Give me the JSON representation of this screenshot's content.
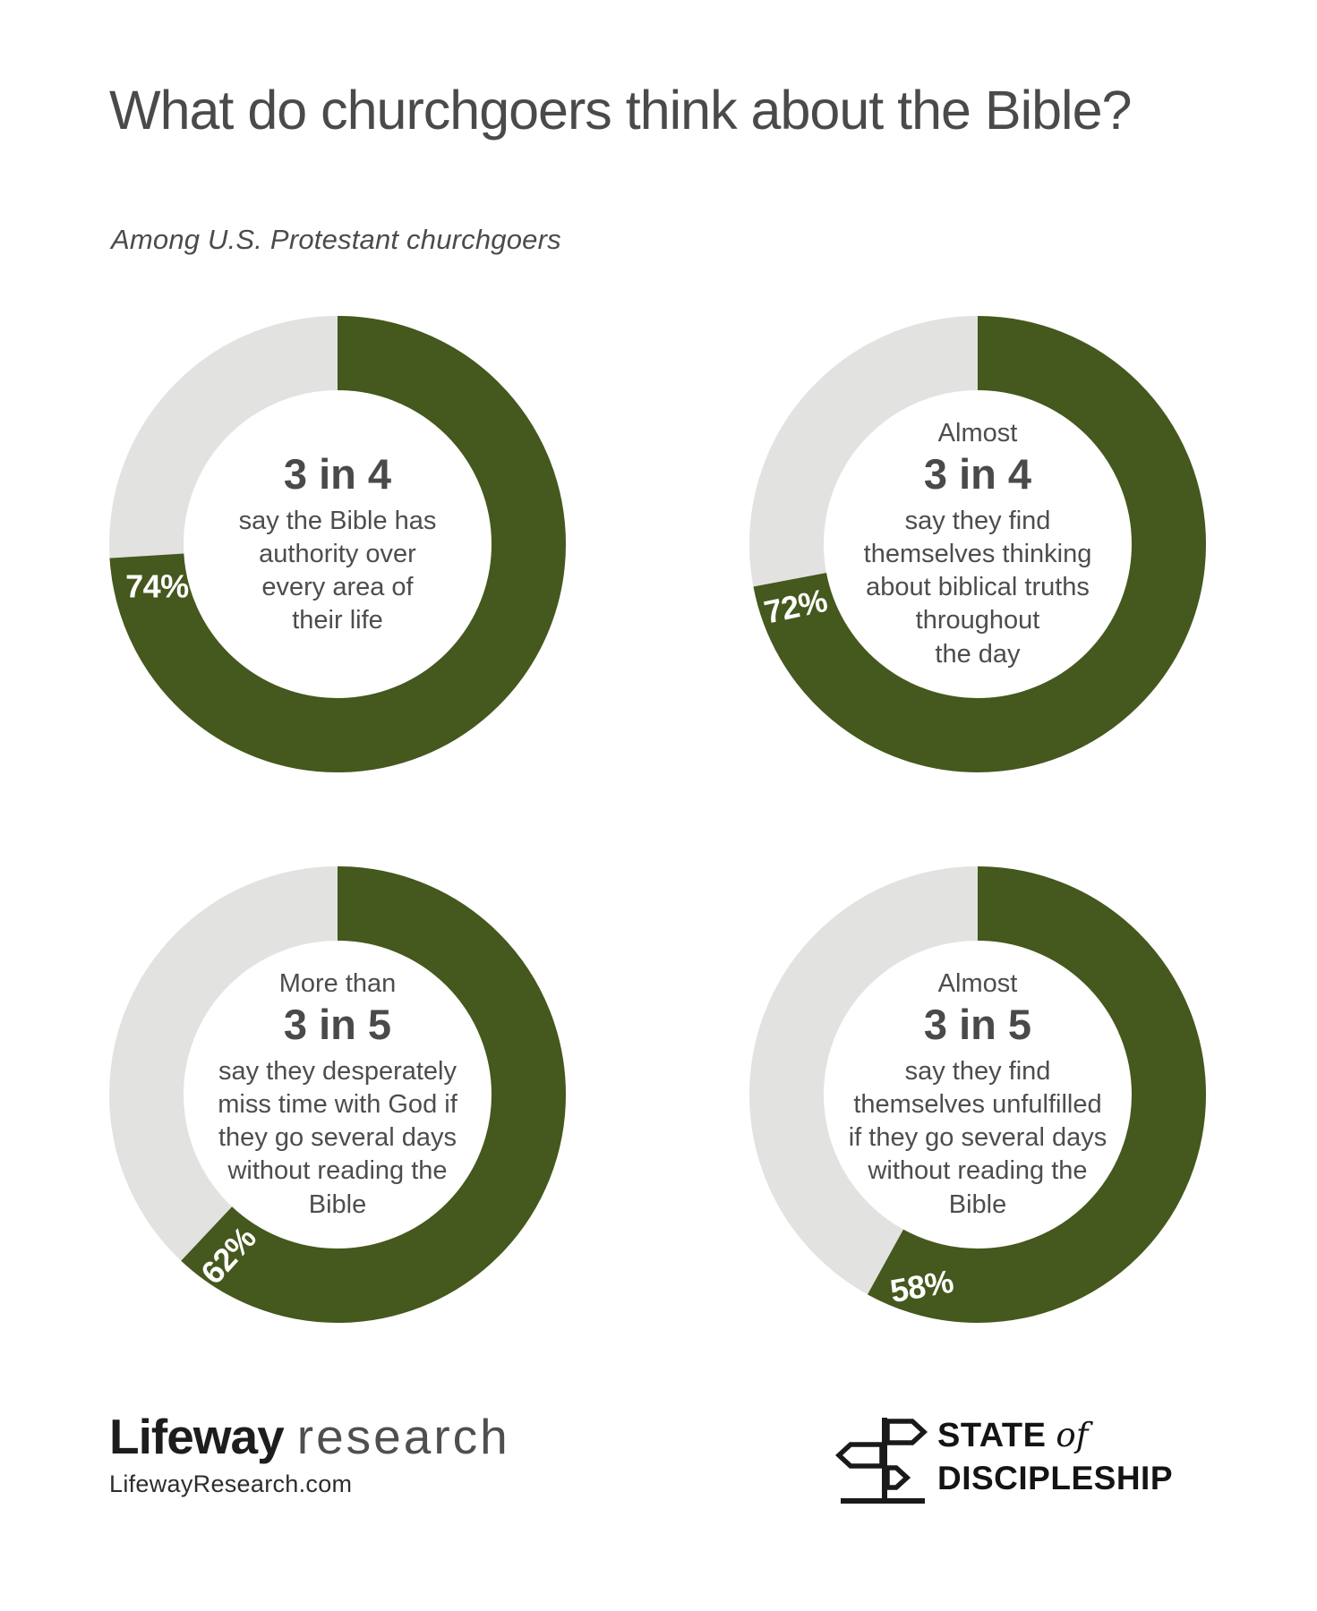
{
  "title": "What do churchgoers think about the Bible?",
  "subtitle": "Among U.S. Protestant churchgoers",
  "colors": {
    "green": "#45581D",
    "track": "#E2E2E1",
    "heading_text": "#4A4A4A",
    "body_text": "#4D4D4D",
    "percent_label": "#FFFFFF"
  },
  "chart_data": [
    {
      "type": "pie",
      "style": "donut",
      "value": 74,
      "remainder": 26,
      "pct_label": "74%",
      "prefix": "",
      "headline": "3 in 4",
      "description": [
        "say the Bible has",
        "authority over",
        "every area of",
        "their life"
      ],
      "arc_start": "12 o'clock",
      "direction": "clockwise"
    },
    {
      "type": "pie",
      "style": "donut",
      "value": 72,
      "remainder": 28,
      "pct_label": "72%",
      "prefix": "Almost",
      "headline": "3 in 4",
      "description": [
        "say they find",
        "themselves thinking",
        "about biblical truths",
        "throughout",
        "the day"
      ],
      "arc_start": "12 o'clock",
      "direction": "clockwise"
    },
    {
      "type": "pie",
      "style": "donut",
      "value": 62,
      "remainder": 38,
      "pct_label": "62%",
      "prefix": "More than",
      "headline": "3 in 5",
      "description": [
        "say they desperately",
        "miss time with God if",
        "they go several days",
        "without reading the",
        "Bible"
      ],
      "arc_start": "12 o'clock",
      "direction": "clockwise"
    },
    {
      "type": "pie",
      "style": "donut",
      "value": 58,
      "remainder": 42,
      "pct_label": "58%",
      "prefix": "Almost",
      "headline": "3 in 5",
      "description": [
        "say they find",
        "themselves unfulfilled",
        "if they go several days",
        "without reading the",
        "Bible"
      ],
      "arc_start": "12 o'clock",
      "direction": "clockwise"
    }
  ],
  "footer": {
    "lifeway": {
      "brand": "Lifeway",
      "brand_suffix": "research",
      "url": "LifewayResearch.com"
    },
    "state_of_discipleship": {
      "line1_main": "STATE",
      "line1_italic": "of",
      "line2": "DISCIPLESHIP",
      "icon": "signpost-icon"
    }
  }
}
